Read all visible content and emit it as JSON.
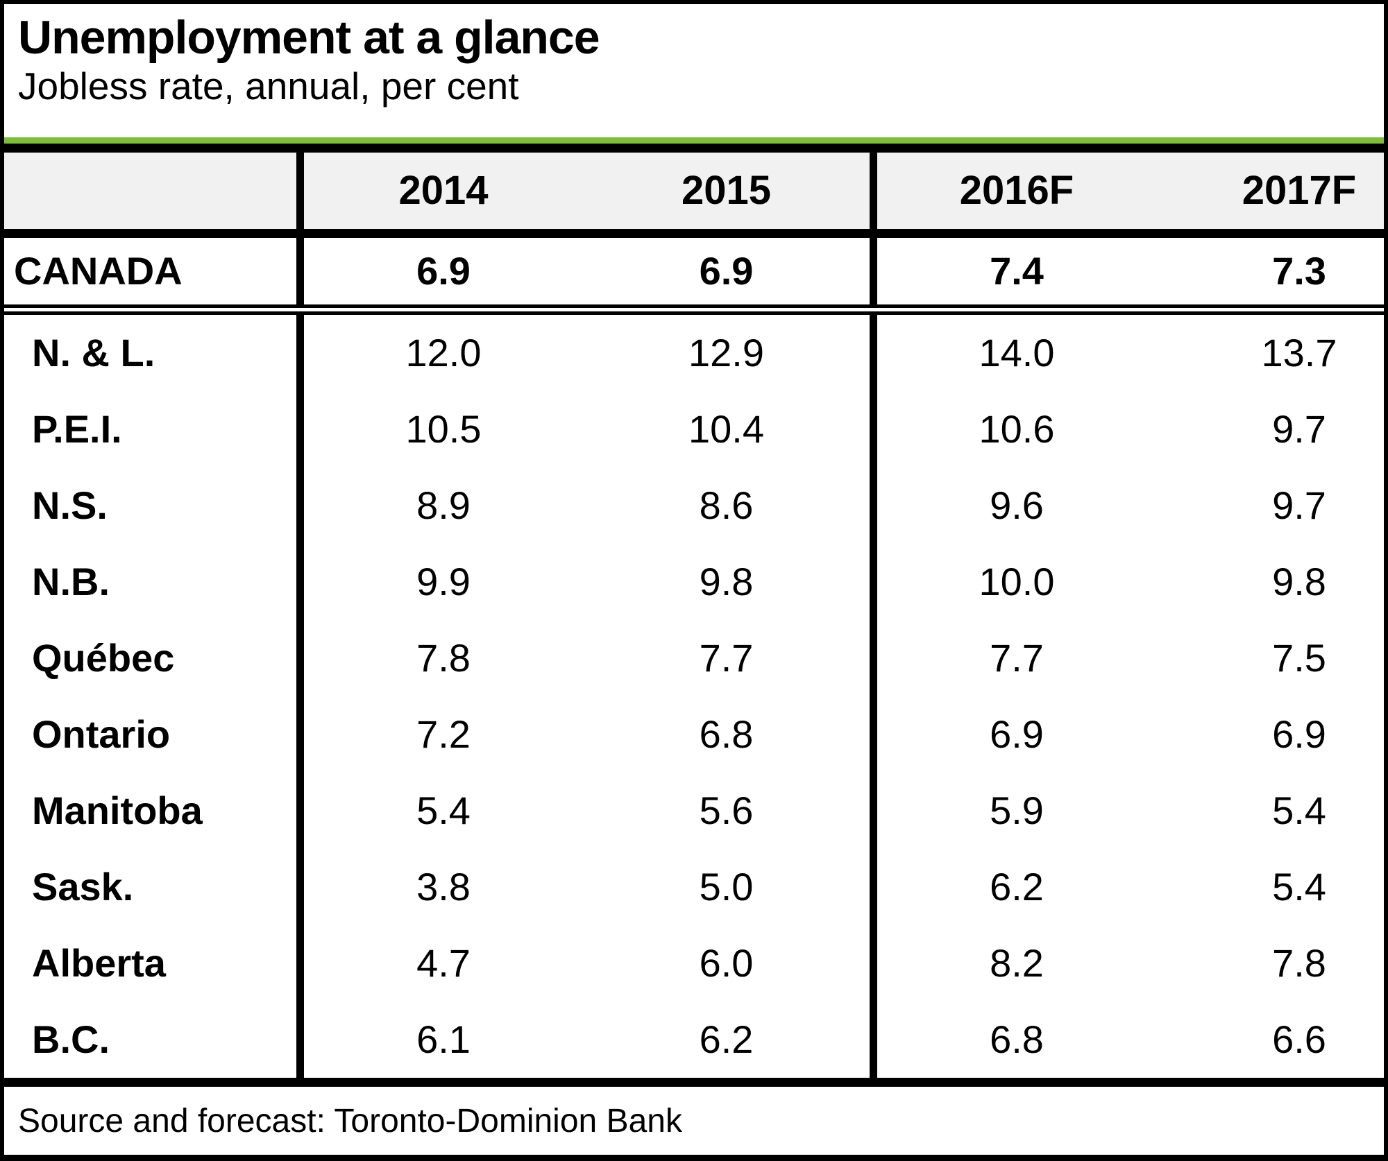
{
  "header": {
    "title": "Unemployment at a glance",
    "subtitle": "Jobless rate, annual, per cent"
  },
  "columns": [
    "2014",
    "2015",
    "2016F",
    "2017F"
  ],
  "canada": {
    "label": "CANADA",
    "values": [
      "6.9",
      "6.9",
      "7.4",
      "7.3"
    ]
  },
  "rows": [
    {
      "label": "N. & L.",
      "values": [
        "12.0",
        "12.9",
        "14.0",
        "13.7"
      ]
    },
    {
      "label": "P.E.I.",
      "values": [
        "10.5",
        "10.4",
        "10.6",
        "9.7"
      ]
    },
    {
      "label": "N.S.",
      "values": [
        "8.9",
        "8.6",
        "9.6",
        "9.7"
      ]
    },
    {
      "label": "N.B.",
      "values": [
        "9.9",
        "9.8",
        "10.0",
        "9.8"
      ]
    },
    {
      "label": "Québec",
      "values": [
        "7.8",
        "7.7",
        "7.7",
        "7.5"
      ]
    },
    {
      "label": "Ontario",
      "values": [
        "7.2",
        "6.8",
        "6.9",
        "6.9"
      ]
    },
    {
      "label": "Manitoba",
      "values": [
        "5.4",
        "5.6",
        "5.9",
        "5.4"
      ]
    },
    {
      "label": "Sask.",
      "values": [
        "3.8",
        "5.0",
        "6.2",
        "5.4"
      ]
    },
    {
      "label": "Alberta",
      "values": [
        "4.7",
        "6.0",
        "8.2",
        "7.8"
      ]
    },
    {
      "label": "B.C.",
      "values": [
        "6.1",
        "6.2",
        "6.8",
        "6.6"
      ]
    }
  ],
  "footer": {
    "source": "Source and forecast: Toronto-Dominion Bank"
  },
  "colors": {
    "accent_green": "#7EBE3C",
    "header_bg": "#F1F1F1",
    "line_black": "#000000"
  },
  "chart_data": {
    "type": "table",
    "title": "Unemployment at a glance",
    "subtitle": "Jobless rate, annual, per cent",
    "unit": "per cent, annual jobless rate",
    "categories": [
      "2014",
      "2015",
      "2016F",
      "2017F"
    ],
    "series": [
      {
        "name": "CANADA",
        "values": [
          6.9,
          6.9,
          7.4,
          7.3
        ]
      },
      {
        "name": "N. & L.",
        "values": [
          12.0,
          12.9,
          14.0,
          13.7
        ]
      },
      {
        "name": "P.E.I.",
        "values": [
          10.5,
          10.4,
          10.6,
          9.7
        ]
      },
      {
        "name": "N.S.",
        "values": [
          8.9,
          8.6,
          9.6,
          9.7
        ]
      },
      {
        "name": "N.B.",
        "values": [
          9.9,
          9.8,
          10.0,
          9.8
        ]
      },
      {
        "name": "Québec",
        "values": [
          7.8,
          7.7,
          7.7,
          7.5
        ]
      },
      {
        "name": "Ontario",
        "values": [
          7.2,
          6.8,
          6.9,
          6.9
        ]
      },
      {
        "name": "Manitoba",
        "values": [
          5.4,
          5.6,
          5.9,
          5.4
        ]
      },
      {
        "name": "Sask.",
        "values": [
          3.8,
          5.0,
          6.2,
          5.4
        ]
      },
      {
        "name": "Alberta",
        "values": [
          4.7,
          6.0,
          8.2,
          7.8
        ]
      },
      {
        "name": "B.C.",
        "values": [
          6.1,
          6.2,
          6.8,
          6.6
        ]
      }
    ],
    "source": "Source and forecast: Toronto-Dominion Bank"
  }
}
